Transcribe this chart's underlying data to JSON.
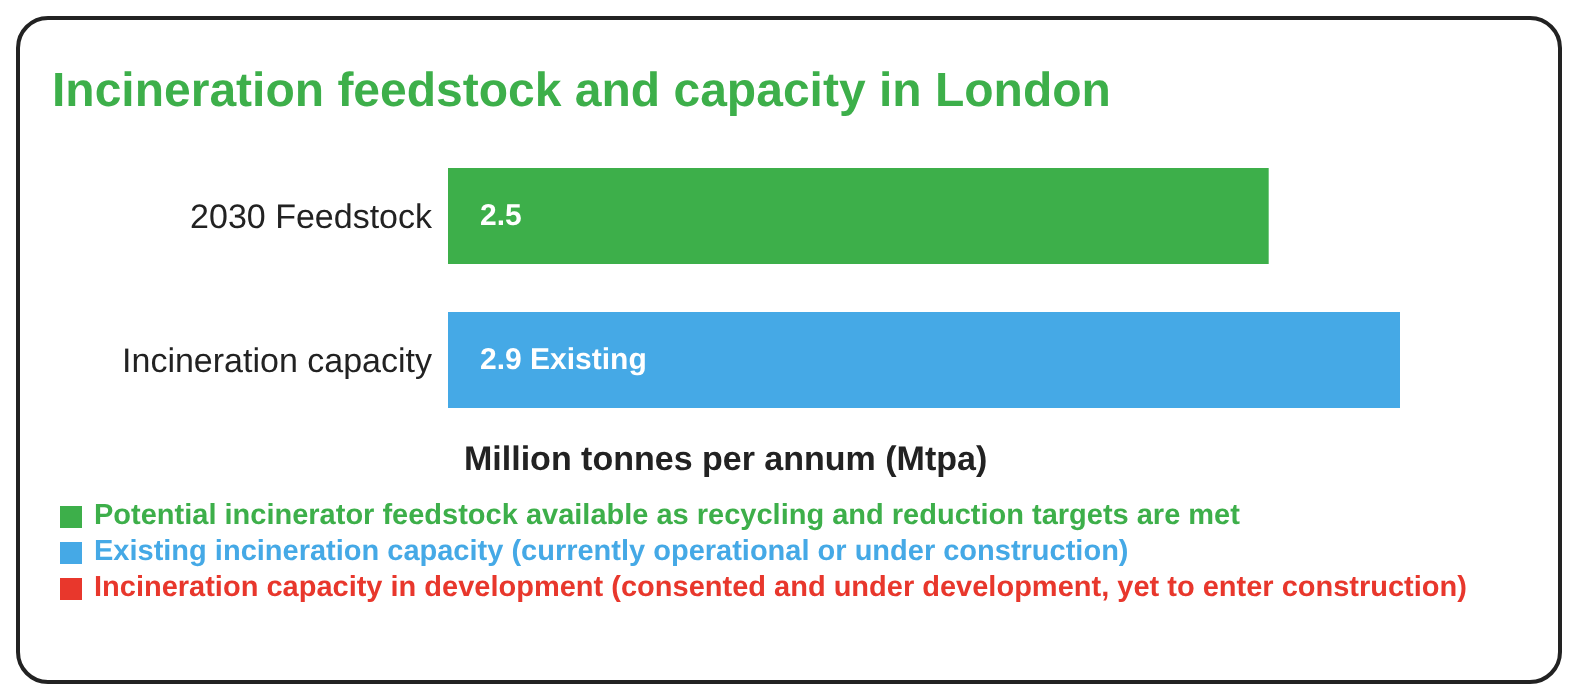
{
  "chart_data": {
    "type": "bar",
    "orientation": "horizontal",
    "stacked": true,
    "title": "Incineration feedstock and capacity in London",
    "xlabel": "Million tonnes per annum (Mtpa)",
    "categories": [
      "2030 Feedstock",
      "Incineration capacity"
    ],
    "legend": "bottom left",
    "series": [
      {
        "name": "Potential incinerator feedstock available as recycling and reduction targets are met",
        "color": "#3daf4a",
        "values": [
          2.5,
          null
        ],
        "value_labels": [
          "2.5",
          null
        ]
      },
      {
        "name": "Existing incineration capacity (currently operational or under construction)",
        "color": "#45a9e6",
        "values": [
          null,
          2.9
        ],
        "value_labels": [
          null,
          "2.9 Existing"
        ]
      },
      {
        "name": "Incineration capacity in development (consented and under development, yet to enter construction)",
        "color": "#e8372c",
        "values": [
          null,
          null
        ]
      }
    ]
  }
}
